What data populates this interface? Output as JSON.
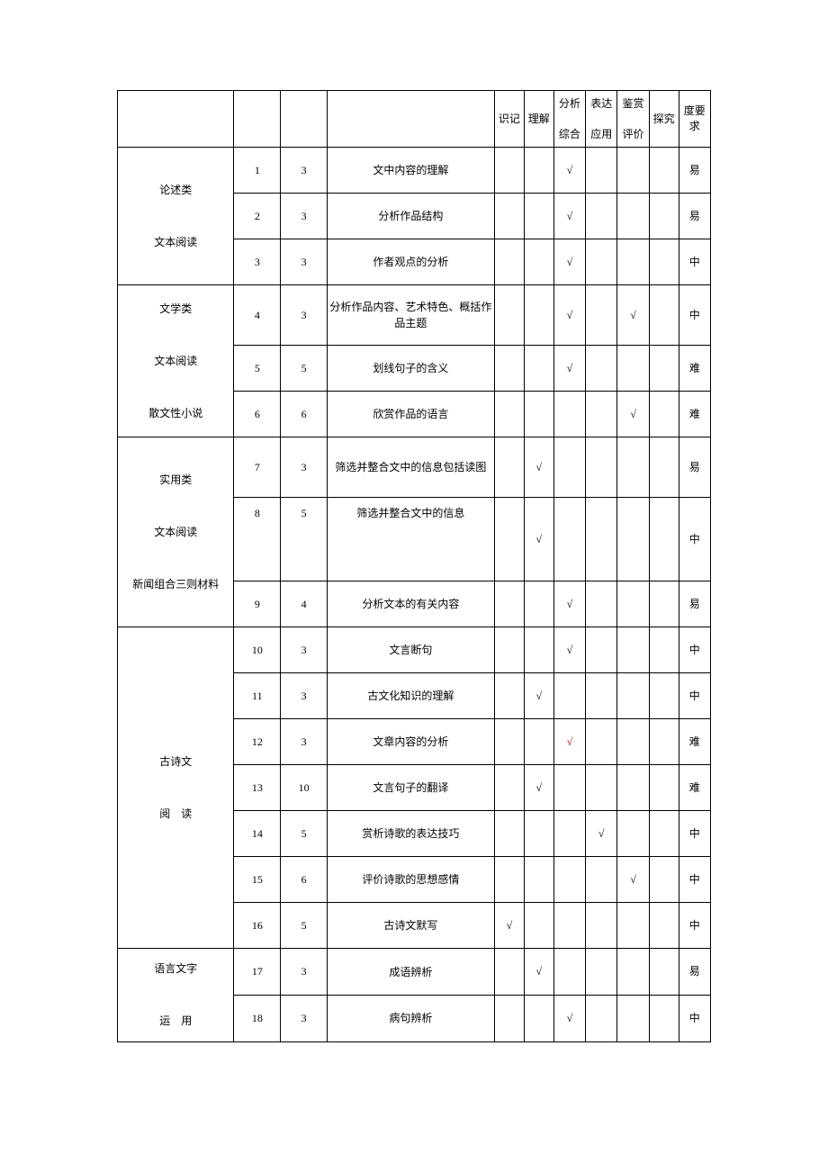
{
  "headers": {
    "c1": "识记",
    "c2": "理解",
    "c3_top": "分析",
    "c3_bot": "综合",
    "c4_top": "表达",
    "c4_bot": "应用",
    "c5_top": "鉴赏",
    "c5_bot": "评价",
    "c6": "探究",
    "c7": "度要求"
  },
  "sections": {
    "s1": "论述类\n文本阅读",
    "s2": "文学类\n文本阅读\n散文性小说",
    "s3": "实用类\n文本阅读\n新闻组合三则材料",
    "s4": "古诗文\n阅　读",
    "s5": "语言文字\n运　用"
  },
  "rows": [
    {
      "n": "1",
      "p": "3",
      "t": "文中内容的理解",
      "m": [
        0,
        0,
        1,
        0,
        0,
        0
      ],
      "d": "易"
    },
    {
      "n": "2",
      "p": "3",
      "t": "分析作品结构",
      "m": [
        0,
        0,
        1,
        0,
        0,
        0
      ],
      "d": "易"
    },
    {
      "n": "3",
      "p": "3",
      "t": "作者观点的分析",
      "m": [
        0,
        0,
        1,
        0,
        0,
        0
      ],
      "d": "中"
    },
    {
      "n": "4",
      "p": "3",
      "t": "分析作品内容、艺术特色、概括作品主题",
      "m": [
        0,
        0,
        1,
        0,
        1,
        0
      ],
      "d": "中"
    },
    {
      "n": "5",
      "p": "5",
      "t": "划线句子的含义",
      "m": [
        0,
        0,
        1,
        0,
        0,
        0
      ],
      "d": "难"
    },
    {
      "n": "6",
      "p": "6",
      "t": "欣赏作品的语言",
      "m": [
        0,
        0,
        0,
        0,
        1,
        0
      ],
      "d": "难"
    },
    {
      "n": "7",
      "p": "3",
      "t": "筛选并整合文中的信息包括读图",
      "m": [
        0,
        1,
        0,
        0,
        0,
        0
      ],
      "d": "易"
    },
    {
      "n": "8",
      "p": "5",
      "t": "筛选并整合文中的信息",
      "m": [
        0,
        1,
        0,
        0,
        0,
        0
      ],
      "d": "中",
      "top": true
    },
    {
      "n": "9",
      "p": "4",
      "t": "分析文本的有关内容",
      "m": [
        0,
        0,
        1,
        0,
        0,
        0
      ],
      "d": "易"
    },
    {
      "n": "10",
      "p": "3",
      "t": "文言断句",
      "m": [
        0,
        0,
        1,
        0,
        0,
        0
      ],
      "d": "中"
    },
    {
      "n": "11",
      "p": "3",
      "t": "古文化知识的理解",
      "m": [
        0,
        1,
        0,
        0,
        0,
        0
      ],
      "d": "中"
    },
    {
      "n": "12",
      "p": "3",
      "t": "文章内容的分析",
      "m": [
        0,
        0,
        1,
        0,
        0,
        0
      ],
      "d": "难",
      "red": true
    },
    {
      "n": "13",
      "p": "10",
      "t": "文言句子的翻译",
      "m": [
        0,
        1,
        0,
        0,
        0,
        0
      ],
      "d": "难"
    },
    {
      "n": "14",
      "p": "5",
      "t": "赏析诗歌的表达技巧",
      "m": [
        0,
        0,
        0,
        1,
        0,
        0
      ],
      "d": "中"
    },
    {
      "n": "15",
      "p": "6",
      "t": "评价诗歌的思想感情",
      "m": [
        0,
        0,
        0,
        0,
        1,
        0
      ],
      "d": "中"
    },
    {
      "n": "16",
      "p": "5",
      "t": "古诗文默写",
      "m": [
        1,
        0,
        0,
        0,
        0,
        0
      ],
      "d": "中"
    },
    {
      "n": "17",
      "p": "3",
      "t": "成语辨析",
      "m": [
        0,
        1,
        0,
        0,
        0,
        0
      ],
      "d": "易"
    },
    {
      "n": "18",
      "p": "3",
      "t": "病句辨析",
      "m": [
        0,
        0,
        1,
        0,
        0,
        0
      ],
      "d": "中"
    }
  ],
  "check": "√"
}
